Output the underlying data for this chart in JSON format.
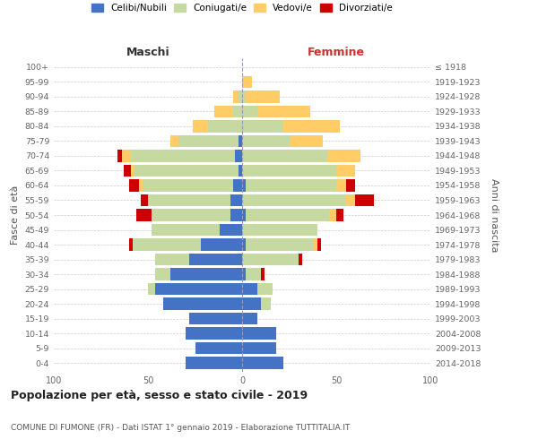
{
  "age_groups": [
    "0-4",
    "5-9",
    "10-14",
    "15-19",
    "20-24",
    "25-29",
    "30-34",
    "35-39",
    "40-44",
    "45-49",
    "50-54",
    "55-59",
    "60-64",
    "65-69",
    "70-74",
    "75-79",
    "80-84",
    "85-89",
    "90-94",
    "95-99",
    "100+"
  ],
  "birth_years": [
    "2014-2018",
    "2009-2013",
    "2004-2008",
    "1999-2003",
    "1994-1998",
    "1989-1993",
    "1984-1988",
    "1979-1983",
    "1974-1978",
    "1969-1973",
    "1964-1968",
    "1959-1963",
    "1954-1958",
    "1949-1953",
    "1944-1948",
    "1939-1943",
    "1934-1938",
    "1929-1933",
    "1924-1928",
    "1919-1923",
    "≤ 1918"
  ],
  "colors": {
    "celibe": "#4472C4",
    "coniugato": "#C5D9A0",
    "vedovo": "#FFCC66",
    "divorziato": "#CC0000"
  },
  "maschi": {
    "celibe": [
      30,
      25,
      30,
      28,
      42,
      46,
      38,
      28,
      22,
      12,
      6,
      6,
      5,
      2,
      4,
      2,
      0,
      0,
      0,
      0,
      0
    ],
    "coniugato": [
      0,
      0,
      0,
      0,
      0,
      4,
      8,
      18,
      36,
      36,
      42,
      44,
      48,
      55,
      55,
      32,
      18,
      5,
      2,
      0,
      0
    ],
    "vedovo": [
      0,
      0,
      0,
      0,
      0,
      0,
      0,
      0,
      0,
      0,
      0,
      0,
      2,
      2,
      5,
      4,
      8,
      10,
      3,
      0,
      0
    ],
    "divorziato": [
      0,
      0,
      0,
      0,
      0,
      0,
      0,
      0,
      2,
      0,
      8,
      4,
      5,
      4,
      2,
      0,
      0,
      0,
      0,
      0,
      0
    ]
  },
  "femmine": {
    "nubile": [
      22,
      18,
      18,
      8,
      10,
      8,
      2,
      0,
      2,
      0,
      2,
      0,
      2,
      0,
      0,
      0,
      0,
      0,
      0,
      0,
      0
    ],
    "coniugata": [
      0,
      0,
      0,
      0,
      5,
      8,
      8,
      30,
      36,
      40,
      44,
      55,
      48,
      50,
      45,
      25,
      22,
      8,
      2,
      0,
      0
    ],
    "vedova": [
      0,
      0,
      0,
      0,
      0,
      0,
      0,
      0,
      2,
      0,
      4,
      5,
      5,
      10,
      18,
      18,
      30,
      28,
      18,
      5,
      0
    ],
    "divorziata": [
      0,
      0,
      0,
      0,
      0,
      0,
      2,
      2,
      2,
      0,
      4,
      10,
      5,
      0,
      0,
      0,
      0,
      0,
      0,
      0,
      0
    ]
  },
  "xlim": 100,
  "title": "Popolazione per età, sesso e stato civile - 2019",
  "subtitle": "COMUNE DI FUMONE (FR) - Dati ISTAT 1° gennaio 2019 - Elaborazione TUTTITALIA.IT",
  "xlabel_left": "Maschi",
  "xlabel_right": "Femmine",
  "ylabel_left": "Fasce di età",
  "ylabel_right": "Anni di nascita",
  "legend_labels": [
    "Celibi/Nubili",
    "Coniugati/e",
    "Vedovi/e",
    "Divorziati/e"
  ],
  "bg_color": "#ffffff",
  "grid_color": "#cccccc",
  "bar_height": 0.82
}
